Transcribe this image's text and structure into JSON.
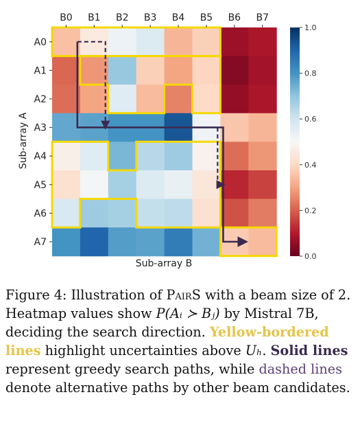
{
  "chart_data": {
    "type": "heatmap",
    "title": "",
    "xlabel": "Sub-array B",
    "ylabel": "Sub-array A",
    "x_ticks": [
      "B0",
      "B1",
      "B2",
      "B3",
      "B4",
      "B5",
      "B6",
      "B7"
    ],
    "y_ticks": [
      "A0",
      "A1",
      "A2",
      "A3",
      "A4",
      "A5",
      "A6",
      "A7"
    ],
    "colorbar": {
      "range": [
        0.0,
        1.0
      ],
      "ticks": [
        "0.0",
        "0.2",
        "0.4",
        "0.6",
        "0.8",
        "1.0"
      ],
      "colormap": "RdBu"
    },
    "values": [
      [
        0.35,
        0.45,
        0.53,
        0.57,
        0.33,
        0.38,
        0.07,
        0.09
      ],
      [
        0.21,
        0.28,
        0.69,
        0.38,
        0.3,
        0.39,
        0.04,
        0.08
      ],
      [
        0.22,
        0.3,
        0.56,
        0.34,
        0.25,
        0.4,
        0.06,
        0.09
      ],
      [
        0.76,
        0.77,
        0.8,
        0.8,
        0.93,
        0.52,
        0.36,
        0.33
      ],
      [
        0.47,
        0.56,
        0.73,
        0.64,
        0.68,
        0.48,
        0.22,
        0.28
      ],
      [
        0.42,
        0.51,
        0.67,
        0.57,
        0.54,
        0.44,
        0.12,
        0.16
      ],
      [
        0.58,
        0.68,
        0.67,
        0.62,
        0.63,
        0.42,
        0.18,
        0.24
      ],
      [
        0.8,
        0.9,
        0.78,
        0.77,
        0.85,
        0.74,
        0.37,
        0.34
      ]
    ],
    "uncertainty_borders": {
      "color": "#f5d800",
      "regions": [
        {
          "name": "region-row0",
          "cells": [
            [
              0,
              0
            ],
            [
              0,
              1
            ],
            [
              0,
              2
            ],
            [
              0,
              3
            ],
            [
              0,
              4
            ],
            [
              0,
              5
            ]
          ]
        },
        {
          "name": "region-rows1-2",
          "cells": [
            [
              1,
              1
            ],
            [
              1,
              2
            ],
            [
              1,
              3
            ],
            [
              1,
              4
            ],
            [
              1,
              5
            ],
            [
              2,
              2
            ],
            [
              2,
              3
            ],
            [
              2,
              5
            ]
          ]
        },
        {
          "name": "region-rows4-6",
          "cells": [
            [
              4,
              0
            ],
            [
              4,
              1
            ],
            [
              4,
              3
            ],
            [
              4,
              4
            ],
            [
              4,
              5
            ],
            [
              5,
              0
            ],
            [
              5,
              1
            ],
            [
              5,
              2
            ],
            [
              5,
              3
            ],
            [
              5,
              4
            ],
            [
              5,
              5
            ],
            [
              6,
              0
            ],
            [
              6,
              3
            ],
            [
              6,
              4
            ],
            [
              6,
              5
            ]
          ]
        },
        {
          "name": "region-row7",
          "cells": [
            [
              7,
              6
            ],
            [
              7,
              7
            ]
          ]
        }
      ]
    },
    "search_paths": {
      "color": "#3b2a4f",
      "greedy": [
        [
          0,
          0.4
        ],
        [
          3,
          0.4
        ],
        [
          3,
          5.6
        ],
        [
          7,
          5.6
        ],
        [
          7,
          6.4
        ]
      ],
      "alternative": [
        [
          [
            0,
            0.4
          ],
          [
            0,
            1.4
          ],
          [
            3,
            1.4
          ]
        ],
        [
          [
            3,
            5.4
          ],
          [
            5,
            5.4
          ],
          [
            5,
            5.6
          ]
        ]
      ]
    }
  },
  "caption": {
    "part1": "Figure 4: Illustration of ",
    "pairs": "PairS",
    "part2": " with a beam size of 2. Heatmap values show ",
    "formula": "P(Aᵢ ≻ Bⱼ)",
    "part3": " by Mistral 7B, deciding the search direction. ",
    "yellow": "Yellow-bordered lines",
    "part4": " highlight uncertainties above ",
    "uh": "Uₕ",
    "part5": ". ",
    "solid": "Solid lines",
    "part6": " represent greedy search paths, while ",
    "dashed": "dashed lines",
    "part7": " denote alternative paths by other beam candidates."
  }
}
